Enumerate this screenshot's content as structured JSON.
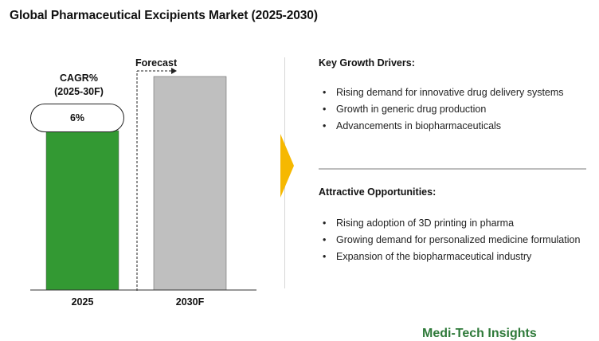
{
  "title": "Global Pharmaceutical Excipients Market (2025-2030)",
  "cagr": {
    "label_line1": "CAGR%",
    "label_line2": "(2025-30F)",
    "value": "6%"
  },
  "forecast_label": "Forecast",
  "chart_data": {
    "type": "bar",
    "categories": [
      "2025",
      "2030F"
    ],
    "values": [
      100,
      134
    ],
    "value_unit": "relative (no axis shown)",
    "colors": [
      "#339933",
      "#bfbfbf"
    ],
    "title": "",
    "xlabel": "",
    "ylabel": "",
    "ylim": [
      0,
      145
    ],
    "grid": false
  },
  "drivers": {
    "title": "Key Growth Drivers:",
    "items": [
      "Rising demand for innovative drug delivery systems",
      "Growth in generic drug production",
      "Advancements in biopharmaceuticals"
    ]
  },
  "opportunities": {
    "title": "Attractive Opportunities:",
    "items": [
      "Rising adoption of 3D printing in pharma",
      "Growing demand for personalized medicine formulation",
      "Expansion of the biopharmaceutical industry"
    ]
  },
  "watermark": "Medi-Tech Insights",
  "colors": {
    "accent_arrow": "#f6b800",
    "bar_2025": "#339933",
    "bar_2030": "#bfbfbf"
  }
}
